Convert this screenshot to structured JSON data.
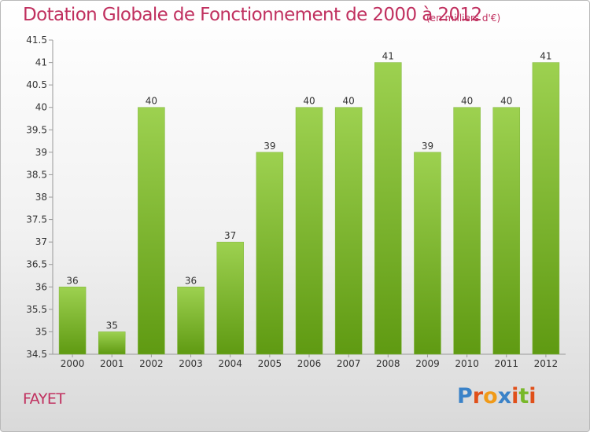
{
  "header": {
    "title": "Dotation Globale de Fonctionnement de 2000 à 2012",
    "subtitle": "(en milliers d'€)"
  },
  "footer": {
    "town": "FAYET",
    "logo_text": "Proxiti",
    "logo_colors": [
      "#3a82c8",
      "#e0501a",
      "#f09a18",
      "#3a82c8",
      "#e0501a",
      "#78b82a",
      "#e0501a"
    ]
  },
  "colors": {
    "accent": "#c0305f",
    "bar_top": "#9dd150",
    "bar_bottom": "#5f9a12",
    "axis": "#999999"
  },
  "chart_data": {
    "type": "bar",
    "categories": [
      "2000",
      "2001",
      "2002",
      "2003",
      "2004",
      "2005",
      "2006",
      "2007",
      "2008",
      "2009",
      "2010",
      "2011",
      "2012"
    ],
    "values": [
      36,
      35,
      40,
      36,
      37,
      39,
      40,
      40,
      41,
      39,
      40,
      40,
      41
    ],
    "data_labels": [
      "36",
      "35",
      "40",
      "36",
      "37",
      "39",
      "40",
      "40",
      "41",
      "39",
      "40",
      "40",
      "41"
    ],
    "yticks": [
      "34.5",
      "35",
      "35.5",
      "36",
      "36.5",
      "37",
      "37.5",
      "38",
      "38.5",
      "39",
      "39.5",
      "40",
      "40.5",
      "41",
      "41.5"
    ],
    "ylim": [
      34.5,
      41.5
    ],
    "grid": false,
    "xlabel": "",
    "ylabel": ""
  }
}
